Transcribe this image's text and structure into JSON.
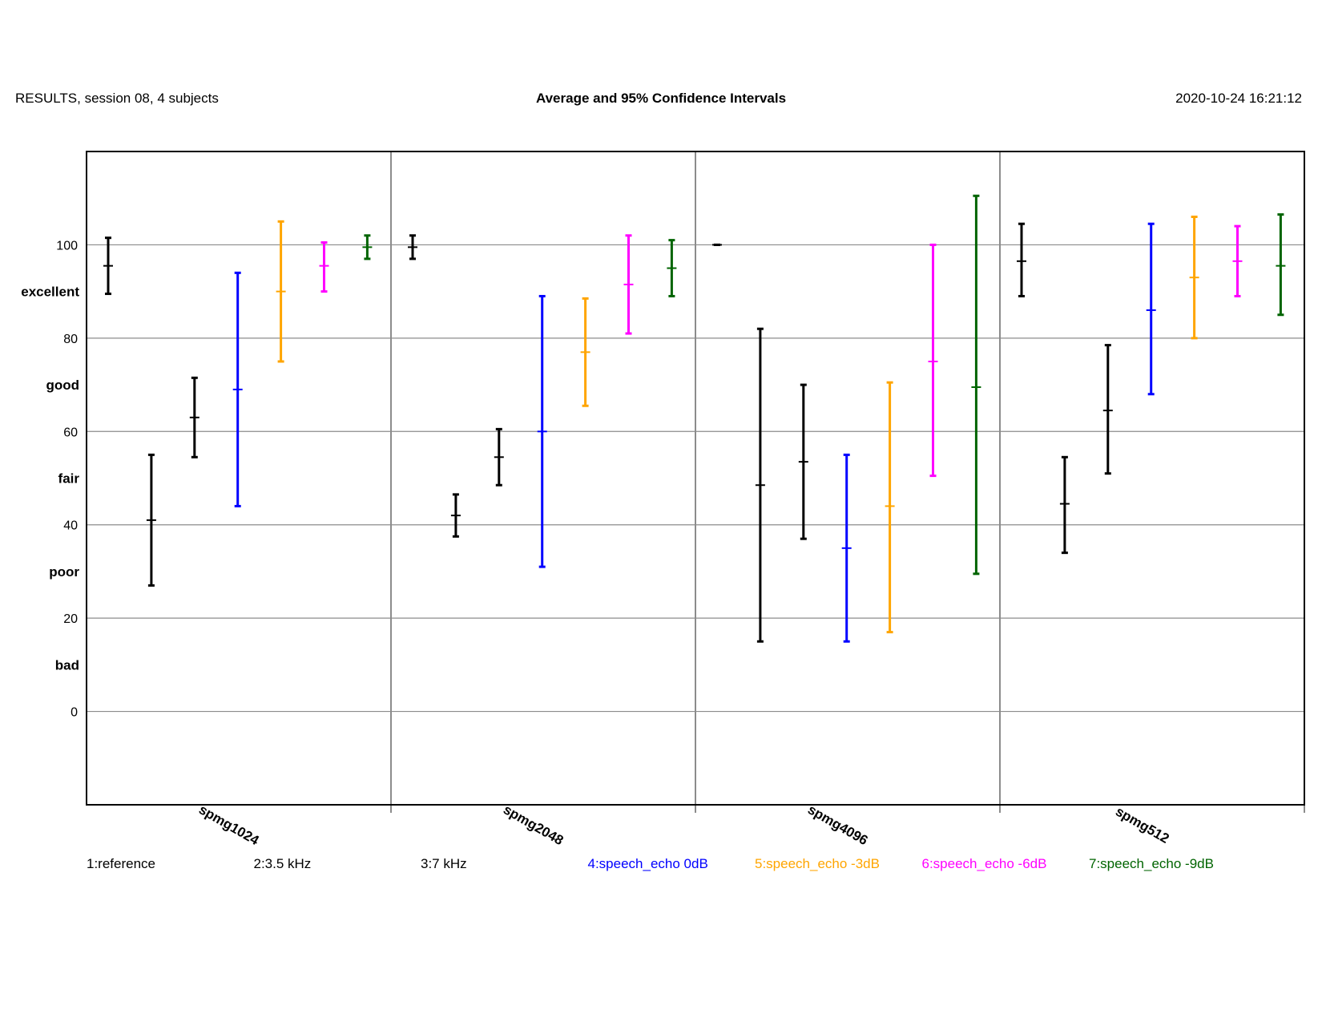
{
  "header": {
    "left": "RESULTS,  session 08,  4 subjects",
    "center": "Average and 95% Confidence Intervals",
    "right": "2020-10-24 16:21:12"
  },
  "chart_data": {
    "type": "errorbar",
    "ylim": [
      -20,
      120
    ],
    "y_ticks": [
      0,
      20,
      40,
      60,
      80,
      100
    ],
    "y_tick_labels": [
      "0",
      "20",
      "40",
      "60",
      "80",
      "100"
    ],
    "quality_labels": [
      {
        "text": "bad",
        "y": 10
      },
      {
        "text": "poor",
        "y": 30
      },
      {
        "text": "fair",
        "y": 50
      },
      {
        "text": "good",
        "y": 70
      },
      {
        "text": "excellent",
        "y": 90
      }
    ],
    "grid": true,
    "groups": [
      "spmg1024",
      "spmg2048",
      "spmg4096",
      "spmg512"
    ],
    "series": [
      {
        "name": "1:reference",
        "color": "#000000",
        "mean": [
          95.5,
          99.5,
          100,
          96.5
        ],
        "low": [
          89.5,
          97,
          100,
          89
        ],
        "high": [
          101.5,
          102,
          100,
          104.5
        ]
      },
      {
        "name": "2:3.5 kHz",
        "color": "#000000",
        "mean": [
          41,
          42,
          48.5,
          44.5
        ],
        "low": [
          27,
          37.5,
          15,
          34
        ],
        "high": [
          55,
          46.5,
          82,
          54.5
        ]
      },
      {
        "name": "3:7 kHz",
        "color": "#000000",
        "mean": [
          63,
          54.5,
          53.5,
          64.5
        ],
        "low": [
          54.5,
          48.5,
          37,
          51
        ],
        "high": [
          71.5,
          60.5,
          70,
          78.5
        ]
      },
      {
        "name": "4:speech_echo 0dB",
        "color": "#0000ff",
        "mean": [
          69,
          60,
          35,
          86
        ],
        "low": [
          44,
          31,
          15,
          68
        ],
        "high": [
          94,
          89,
          55,
          104.5
        ]
      },
      {
        "name": "5:speech_echo -3dB",
        "color": "#ffa500",
        "mean": [
          90,
          77,
          44,
          93
        ],
        "low": [
          75,
          65.5,
          17,
          80
        ],
        "high": [
          105,
          88.5,
          70.5,
          106
        ]
      },
      {
        "name": "6:speech_echo -6dB",
        "color": "#ff00ff",
        "mean": [
          95.5,
          91.5,
          75,
          96.5
        ],
        "low": [
          90,
          81,
          50.5,
          89
        ],
        "high": [
          100.5,
          102,
          100,
          104
        ]
      },
      {
        "name": "7:speech_echo -9dB",
        "color": "#006400",
        "mean": [
          99.5,
          95,
          69.5,
          95.5
        ],
        "low": [
          97,
          89,
          29.5,
          85
        ],
        "high": [
          102,
          101,
          110.5,
          106.5
        ]
      }
    ]
  }
}
